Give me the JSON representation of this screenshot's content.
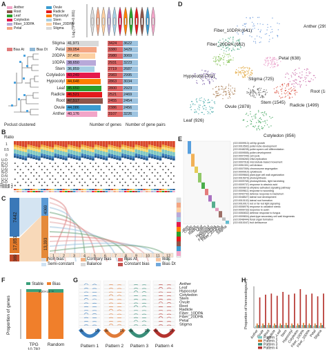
{
  "panel_letters": {
    "a": "A",
    "b": "B",
    "c": "C",
    "d": "D",
    "e": "E",
    "f": "F",
    "g": "G",
    "h": "H"
  },
  "panelA": {
    "ylabel": "Log₂(TPM+0.001)",
    "legend": [
      "Anther",
      "Ovule",
      "Root",
      "Radicle",
      "Leaf",
      "Hypocotyl",
      "Cotyledon",
      "Stem",
      "Fiber_10DPA",
      "Fiber_20DPA",
      "Petal",
      "Stigma"
    ],
    "bias_legend": [
      "Bias At",
      "Bias Dt"
    ],
    "pvclust_label": "Pvclust clustered",
    "xlabel_genes": "Number of genes",
    "xlabel_pairs": "Number of gene pairs",
    "tissues": [
      "Stigma",
      "Petal",
      "20DPA",
      "10DPA",
      "Stem",
      "Cotyledon",
      "Hypocotyl",
      "Leaf",
      "Radicle",
      "Root",
      "Ovule",
      "Anther"
    ],
    "genes": [
      "41,971",
      "39,054",
      "37,450",
      "38,650",
      "36,859",
      "43,249",
      "44,648",
      "45,650",
      "46,521",
      "47,517",
      "44,086",
      "40,176"
    ],
    "pairs_a": [
      "3424",
      "3380",
      "2980",
      "2931",
      "2719",
      "2983",
      "2863",
      "2800",
      "2521",
      "2455",
      "2386",
      "3107"
    ],
    "pairs_b": [
      "3622",
      "3429",
      "3069",
      "3223",
      "2687",
      "2995",
      "3034",
      "2923",
      "2469",
      "2454",
      "2456",
      "3226"
    ],
    "colors": [
      "#d9d9d9",
      "#f4a582",
      "#fdd0a2",
      "#b8a9d9",
      "#a6cee3",
      "#e6194b",
      "#ff7f00",
      "#2ca02c",
      "#e31a1c",
      "#8c564b",
      "#3b9bd0",
      "#f2a5c8"
    ]
  },
  "panelB": {
    "ylabel": "Ratio",
    "ticks": [
      "1",
      "0.5",
      "0"
    ],
    "rows": [
      "U-D",
      "D-U",
      "N-U",
      "U-N",
      "N-D",
      "D-N",
      "U-U",
      "D-D"
    ],
    "tissue_rows": [
      "Tissue 1",
      "Tissue 2"
    ]
  },
  "panelC": {
    "left_values": [
      "7442",
      "17,851",
      "389"
    ],
    "mid_values": [
      "4069",
      "13,393"
    ],
    "numbers": [
      "1",
      "2",
      "3",
      "4",
      "5",
      "6",
      "7",
      "8",
      "9",
      "10",
      "11",
      "12"
    ],
    "legend": [
      "Non bias",
      "Contrary bias",
      "Bias At",
      "Bias",
      "Semi-constant",
      "Balance",
      "Constant bias",
      "Bias Dt"
    ]
  },
  "panelD": {
    "labels": [
      "Anther (2995)",
      "Fiber_10DPA (641)",
      "Fiber_20DPA (662)",
      "Root (1827)",
      "Petal (638)",
      "Stigma (725)",
      "Hypocotyl (701)",
      "Radicle (1499)",
      "Ovule (2878)",
      "Stem (1545)",
      "Leaf (926)",
      "Cotyledon (856)"
    ]
  },
  "panelE": {
    "terms": [
      "(GO:0009913) cell tip growth",
      "(GO:0010592) pollen tube development",
      "(GO:0048235) pollen sperm cell differentiation",
      "(GO:0009555) pollen development",
      "(GO:0007049) cell cycle",
      "(GO:0006260) DNA replication",
      "(GO:0007018) microtubule-based movement",
      "(GO:0051301) cell division",
      "(GO:0007059) chromosome segregation",
      "(GO:0000910) cytokinesis",
      "(GO:0009664) plant-type cell wall organization",
      "(GO:0015979) photosynthesis",
      "(GO:0009765) photosynthesis, light harvesting",
      "(GO:0009737) response to abscisic acid",
      "(GO:0009873) ethylene-activated signaling pathway",
      "(GO:0009611) response to wounding",
      "(GO:0042742) defense response to bacterium",
      "(GO:0048527) lateral root development",
      "(GO:0010102) lateral root formation",
      "(GO:0010017) red or far-red light signaling",
      "(GO:0006979) response to oxidative stress",
      "(GO:0009733) response to auxin",
      "(GO:0050832) defense response to fungus",
      "(GO:0009834) plant-type secondary cell wall biogenesis",
      "(GO:0048444) floral organ formation",
      "(GO:0010047) fruit dehiscence"
    ],
    "columns": [
      "Anther",
      "Ovule",
      "Root",
      "Radicle",
      "Leaf",
      "Stem",
      "Hypocotyl",
      "Cotyledon",
      "Fiber_10DPA",
      "Fiber_20DPA",
      "Petal",
      "Stigma"
    ]
  },
  "panelF": {
    "ylabel": "Proportion of genes",
    "legend": [
      "Stable",
      "Bias"
    ],
    "categories": [
      "TPG",
      "Random"
    ],
    "pvalue": "2.20×10⁻¹⁶",
    "count": "10,782"
  },
  "panelG": {
    "tissues": [
      "Anther",
      "Leaf",
      "Hypocotyl",
      "Cotyledon",
      "Stem",
      "Ovule",
      "Root",
      "Radicle",
      "Fiber_10DPA",
      "Fiber_20DPA",
      "Petal",
      "Stigma"
    ],
    "patterns": [
      "Pattern 1",
      "Pattern 2",
      "Pattern 3",
      "Pattern 4"
    ],
    "at": "At",
    "dt": "Dt"
  },
  "panelH": {
    "ylabel": "Proportion of homoeologous genes",
    "legend": [
      "Pattern 1",
      "Pattern 2",
      "Pattern 3",
      "Pattern 4"
    ],
    "colors": [
      "#7fc7c2",
      "#e07b39",
      "#3a8f7a",
      "#b5332e"
    ]
  },
  "chart_data": [
    {
      "type": "bar",
      "panel": "A",
      "categories": [
        "Stigma",
        "Petal",
        "20DPA",
        "10DPA",
        "Stem",
        "Cotyledon",
        "Hypocotyl",
        "Leaf",
        "Radicle",
        "Root",
        "Ovule",
        "Anther"
      ],
      "series": [
        {
          "values": [
            41971,
            39054,
            37450,
            38650,
            36859,
            43249,
            44648,
            45650,
            46521,
            47517,
            44086,
            40176
          ]
        }
      ],
      "xlabel": "Number of genes"
    },
    {
      "type": "bar",
      "panel": "F",
      "categories": [
        "TPG",
        "Random"
      ],
      "series": [
        {
          "name": "Stable",
          "values": [
            0.06,
            0.07
          ]
        },
        {
          "name": "Bias",
          "values": [
            0.94,
            0.93
          ]
        }
      ],
      "ylabel": "Proportion of genes",
      "ylim": [
        0,
        1
      ]
    },
    {
      "type": "bar",
      "panel": "H",
      "categories": [
        "Anther",
        "Ovule",
        "Root",
        "Radicle",
        "Leaf",
        "Stem",
        "Hypocotyl",
        "Cotyledon",
        "Fiber_10DPA",
        "Fiber_20DPA",
        "Petal",
        "Stigma"
      ],
      "series": [
        {
          "name": "Pattern 1",
          "values": [
            0.04,
            0.04,
            0.05,
            0.04,
            0.04,
            0.05,
            0.04,
            0.04,
            0.05,
            0.05,
            0.04,
            0.04
          ]
        },
        {
          "name": "Pattern 2",
          "values": [
            0.08,
            0.08,
            0.09,
            0.08,
            0.08,
            0.09,
            0.08,
            0.08,
            0.09,
            0.08,
            0.08,
            0.09
          ]
        },
        {
          "name": "Pattern 3",
          "values": [
            0.05,
            0.05,
            0.05,
            0.05,
            0.05,
            0.05,
            0.05,
            0.05,
            0.05,
            0.05,
            0.05,
            0.05
          ]
        },
        {
          "name": "Pattern 4",
          "values": [
            0.55,
            0.6,
            0.62,
            0.58,
            0.65,
            0.6,
            0.62,
            0.7,
            0.6,
            0.62,
            0.57,
            0.62
          ]
        }
      ],
      "ylabel": "Proportion of homoeologous genes"
    }
  ]
}
